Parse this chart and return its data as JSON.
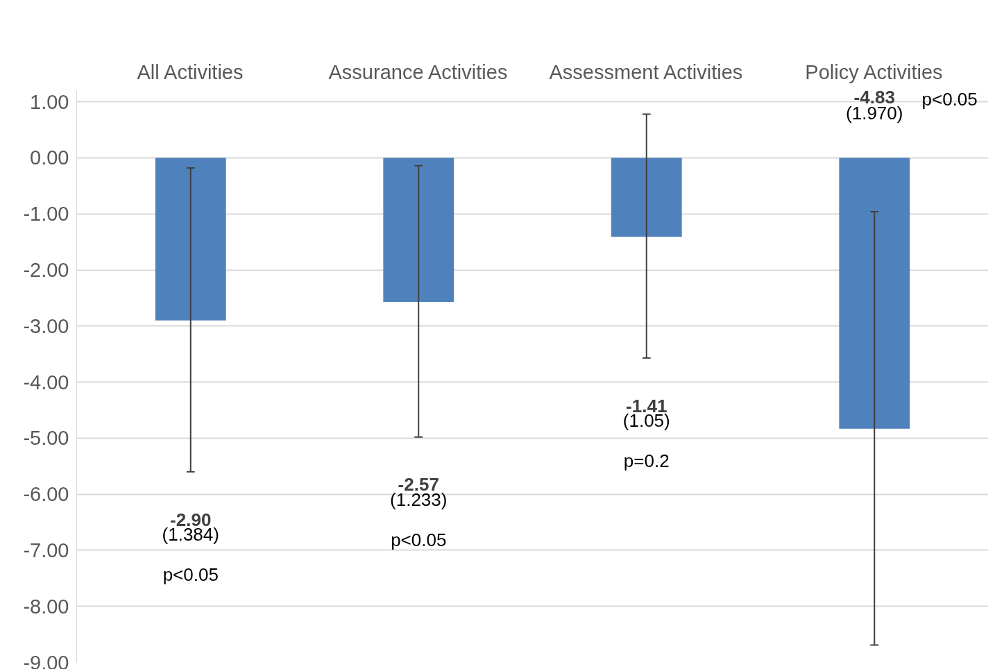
{
  "chart_data": {
    "type": "bar",
    "categories": [
      "All Activities",
      "Assurance Activities",
      "Assessment Activities",
      "Policy Activities"
    ],
    "values": [
      -2.9,
      -2.57,
      -1.41,
      -4.83
    ],
    "color": "#4f81bd",
    "errors": [
      [
        -0.18,
        -5.6
      ],
      [
        -0.14,
        -4.98
      ],
      [
        0.78,
        -3.57
      ],
      [
        -0.96,
        -8.69
      ]
    ],
    "ylim": [
      -9,
      1.2
    ],
    "yticks": [
      {
        "value": 1,
        "label": "1.00"
      },
      {
        "value": 0,
        "label": "0.00"
      },
      {
        "value": -1,
        "label": "-1.00"
      },
      {
        "value": -2,
        "label": "-2.00"
      },
      {
        "value": -3,
        "label": "-3.00"
      },
      {
        "value": -4,
        "label": "-4.00"
      },
      {
        "value": -5,
        "label": "-5.00"
      },
      {
        "value": -6,
        "label": "-6.00"
      },
      {
        "value": -7,
        "label": "-7.00"
      },
      {
        "value": -8,
        "label": "-8.00"
      },
      {
        "value": -9,
        "label": "-9.00"
      }
    ],
    "grid": "y",
    "annotations": [
      "-2.90",
      "(1.384)",
      "p<0.05",
      "-2.57",
      "(1.233)",
      "p<0.05",
      "-1.41",
      "(1.05)",
      "p=0.2",
      "-4.83",
      "(1.970)",
      "p<0.05"
    ]
  }
}
